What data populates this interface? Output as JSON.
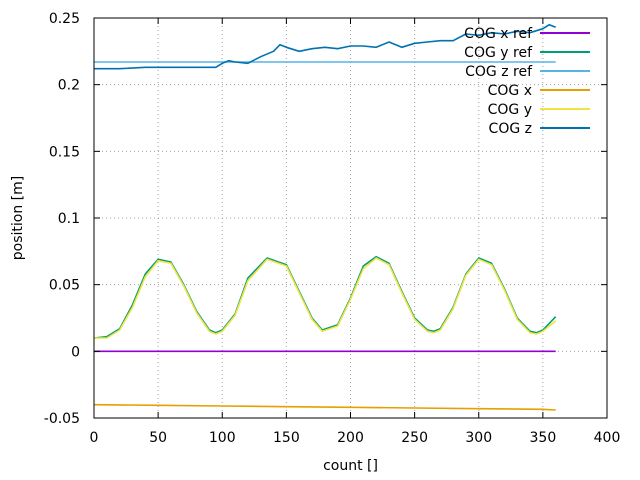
{
  "chart_data": {
    "type": "line",
    "title": "",
    "xlabel": "count []",
    "ylabel": "position [m]",
    "xlim": [
      0,
      400
    ],
    "ylim": [
      -0.05,
      0.25
    ],
    "x_ticks": [
      0,
      50,
      100,
      150,
      200,
      250,
      300,
      350,
      400
    ],
    "y_ticks": [
      -0.05,
      0,
      0.05,
      0.1,
      0.15,
      0.2,
      0.25
    ],
    "x_tick_labels": [
      "0",
      "50",
      "100",
      "150",
      "200",
      "250",
      "300",
      "350",
      "400"
    ],
    "y_tick_labels": [
      "-0.05",
      "0",
      "0.05",
      "0.1",
      "0.15",
      "0.2",
      "0.25"
    ],
    "grid": true,
    "legend_position": "top-right",
    "series": [
      {
        "name": "COG x ref",
        "color": "#9400d3",
        "x": [
          0,
          360
        ],
        "y": [
          0.0,
          0.0
        ]
      },
      {
        "name": "COG y ref",
        "color": "#009e73",
        "x": [
          0,
          10,
          20,
          30,
          40,
          50,
          60,
          70,
          80,
          90,
          95,
          100,
          110,
          120,
          135,
          150,
          160,
          170,
          178,
          190,
          200,
          210,
          220,
          230,
          240,
          250,
          260,
          265,
          270,
          280,
          290,
          300,
          310,
          320,
          330,
          340,
          345,
          350,
          360
        ],
        "y": [
          0.01,
          0.011,
          0.017,
          0.035,
          0.058,
          0.069,
          0.067,
          0.05,
          0.03,
          0.016,
          0.014,
          0.016,
          0.028,
          0.055,
          0.07,
          0.065,
          0.045,
          0.025,
          0.016,
          0.02,
          0.04,
          0.064,
          0.071,
          0.066,
          0.045,
          0.025,
          0.016,
          0.015,
          0.017,
          0.033,
          0.058,
          0.07,
          0.066,
          0.047,
          0.025,
          0.015,
          0.014,
          0.016,
          0.026
        ]
      },
      {
        "name": "COG z ref",
        "color": "#56b4e9",
        "x": [
          0,
          360
        ],
        "y": [
          0.217,
          0.217
        ]
      },
      {
        "name": "COG x",
        "color": "#e69f00",
        "x": [
          0,
          50,
          100,
          150,
          200,
          250,
          300,
          350,
          360
        ],
        "y": [
          -0.04,
          -0.0405,
          -0.041,
          -0.0415,
          -0.042,
          -0.0425,
          -0.043,
          -0.0435,
          -0.044
        ]
      },
      {
        "name": "COG y",
        "color": "#f0e442",
        "x": [
          0,
          10,
          20,
          30,
          40,
          50,
          60,
          70,
          80,
          90,
          95,
          100,
          110,
          120,
          135,
          150,
          160,
          170,
          178,
          190,
          200,
          210,
          220,
          230,
          240,
          250,
          260,
          265,
          270,
          280,
          290,
          300,
          310,
          320,
          330,
          340,
          345,
          350,
          360
        ],
        "y": [
          0.01,
          0.01,
          0.016,
          0.033,
          0.056,
          0.068,
          0.066,
          0.049,
          0.029,
          0.015,
          0.013,
          0.015,
          0.027,
          0.053,
          0.069,
          0.064,
          0.044,
          0.024,
          0.015,
          0.019,
          0.039,
          0.062,
          0.07,
          0.065,
          0.044,
          0.024,
          0.015,
          0.014,
          0.016,
          0.032,
          0.057,
          0.069,
          0.065,
          0.046,
          0.024,
          0.014,
          0.013,
          0.015,
          0.023
        ]
      },
      {
        "name": "COG z",
        "color": "#0072b2",
        "x": [
          0,
          20,
          40,
          60,
          80,
          95,
          100,
          105,
          110,
          120,
          130,
          140,
          145,
          150,
          160,
          170,
          180,
          190,
          200,
          210,
          220,
          230,
          240,
          250,
          260,
          270,
          280,
          290,
          300,
          310,
          320,
          330,
          340,
          350,
          355,
          360
        ],
        "y": [
          0.212,
          0.212,
          0.213,
          0.213,
          0.213,
          0.213,
          0.216,
          0.218,
          0.217,
          0.216,
          0.221,
          0.225,
          0.23,
          0.228,
          0.225,
          0.227,
          0.228,
          0.227,
          0.229,
          0.229,
          0.228,
          0.232,
          0.228,
          0.231,
          0.232,
          0.233,
          0.233,
          0.238,
          0.237,
          0.239,
          0.238,
          0.24,
          0.239,
          0.242,
          0.245,
          0.243
        ]
      }
    ]
  }
}
